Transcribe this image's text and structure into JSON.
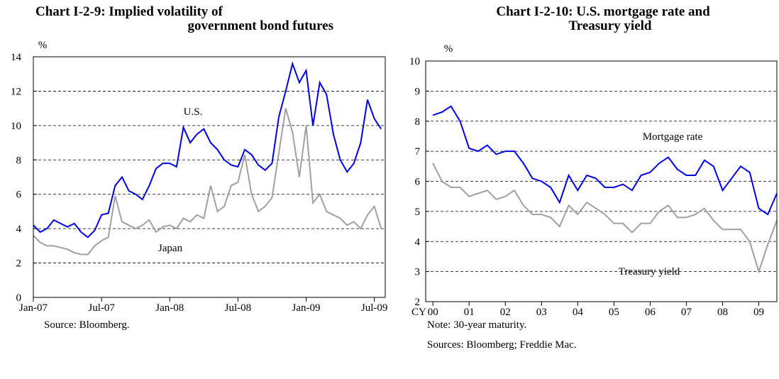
{
  "chart_data": [
    {
      "type": "line",
      "title_lines": [
        "Chart I-2-9: Implied volatility of",
        "government bond futures"
      ],
      "y_label": "%",
      "annotations": [
        "U.S.",
        "Japan"
      ],
      "notes": [
        "Source: Bloomberg."
      ],
      "xlim": [
        2007.0,
        2009.58
      ],
      "xticks": [
        {
          "value": 2007.0,
          "label": "Jan-07"
        },
        {
          "value": 2007.5,
          "label": "Jul-07"
        },
        {
          "value": 2008.0,
          "label": "Jan-08"
        },
        {
          "value": 2008.5,
          "label": "Jul-08"
        },
        {
          "value": 2009.0,
          "label": "Jan-09"
        },
        {
          "value": 2009.5,
          "label": "Jul-09"
        }
      ],
      "ylim": [
        0,
        14
      ],
      "yticks": [
        0,
        2,
        4,
        6,
        8,
        10,
        12,
        14
      ],
      "grid": true,
      "x": [
        2007.0,
        2007.05,
        2007.1,
        2007.15,
        2007.2,
        2007.25,
        2007.3,
        2007.35,
        2007.4,
        2007.45,
        2007.5,
        2007.55,
        2007.6,
        2007.65,
        2007.7,
        2007.75,
        2007.8,
        2007.85,
        2007.9,
        2007.95,
        2008.0,
        2008.05,
        2008.1,
        2008.15,
        2008.2,
        2008.25,
        2008.3,
        2008.35,
        2008.4,
        2008.45,
        2008.5,
        2008.55,
        2008.6,
        2008.65,
        2008.7,
        2008.75,
        2008.8,
        2008.85,
        2008.9,
        2008.95,
        2009.0,
        2009.05,
        2009.1,
        2009.15,
        2009.2,
        2009.25,
        2009.3,
        2009.35,
        2009.4,
        2009.45,
        2009.5,
        2009.55
      ],
      "series": [
        {
          "name": "U.S.",
          "color": "#0000e6",
          "values": [
            4.2,
            3.8,
            4.0,
            4.5,
            4.3,
            4.1,
            4.3,
            3.8,
            3.5,
            3.9,
            4.8,
            4.9,
            6.5,
            7.0,
            6.2,
            6.0,
            5.7,
            6.5,
            7.5,
            7.8,
            7.8,
            7.6,
            9.9,
            9.0,
            9.5,
            9.8,
            9.0,
            8.6,
            8.0,
            7.7,
            7.6,
            8.6,
            8.3,
            7.7,
            7.4,
            7.8,
            10.5,
            12.0,
            13.6,
            12.5,
            13.2,
            10.0,
            12.5,
            11.8,
            9.5,
            8.0,
            7.3,
            7.8,
            9.0,
            11.5,
            10.4,
            9.8
          ]
        },
        {
          "name": "Japan",
          "color": "#a0a0a0",
          "values": [
            3.6,
            3.2,
            3.0,
            3.0,
            2.9,
            2.8,
            2.6,
            2.5,
            2.5,
            3.0,
            3.3,
            3.5,
            5.9,
            4.4,
            4.2,
            4.0,
            4.2,
            4.5,
            3.8,
            4.1,
            4.2,
            4.0,
            4.6,
            4.4,
            4.8,
            4.6,
            6.5,
            5.0,
            5.3,
            6.5,
            6.7,
            8.3,
            6.0,
            5.0,
            5.3,
            5.8,
            8.4,
            11.0,
            9.6,
            7.0,
            10.0,
            5.5,
            6.0,
            5.0,
            4.8,
            4.6,
            4.2,
            4.4,
            4.0,
            4.8,
            5.3,
            4.0
          ]
        }
      ]
    },
    {
      "type": "line",
      "title_lines": [
        "Chart I-2-10: U.S. mortgage rate and",
        "Treasury yield"
      ],
      "y_label": "%",
      "x_label": "CY",
      "annotations": [
        "Mortgage rate",
        "Treasury yield"
      ],
      "notes": [
        "Note: 30-year maturity.",
        "Sources: Bloomberg; Freddie Mac."
      ],
      "xlim": [
        1999.8,
        2009.5
      ],
      "xticks": [
        {
          "value": 2000,
          "label": "00"
        },
        {
          "value": 2001,
          "label": "01"
        },
        {
          "value": 2002,
          "label": "02"
        },
        {
          "value": 2003,
          "label": "03"
        },
        {
          "value": 2004,
          "label": "04"
        },
        {
          "value": 2005,
          "label": "05"
        },
        {
          "value": 2006,
          "label": "06"
        },
        {
          "value": 2007,
          "label": "07"
        },
        {
          "value": 2008,
          "label": "08"
        },
        {
          "value": 2009,
          "label": "09"
        }
      ],
      "ylim": [
        2,
        10
      ],
      "yticks": [
        2,
        3,
        4,
        5,
        6,
        7,
        8,
        9,
        10
      ],
      "grid": true,
      "x": [
        2000.0,
        2000.25,
        2000.5,
        2000.75,
        2001.0,
        2001.25,
        2001.5,
        2001.75,
        2002.0,
        2002.25,
        2002.5,
        2002.75,
        2003.0,
        2003.25,
        2003.5,
        2003.75,
        2004.0,
        2004.25,
        2004.5,
        2004.75,
        2005.0,
        2005.25,
        2005.5,
        2005.75,
        2006.0,
        2006.25,
        2006.5,
        2006.75,
        2007.0,
        2007.25,
        2007.5,
        2007.75,
        2008.0,
        2008.25,
        2008.5,
        2008.75,
        2009.0,
        2009.25,
        2009.5
      ],
      "series": [
        {
          "name": "Mortgage rate",
          "color": "#0000e6",
          "values": [
            8.2,
            8.3,
            8.5,
            8.0,
            7.1,
            7.0,
            7.2,
            6.9,
            7.0,
            7.0,
            6.6,
            6.1,
            6.0,
            5.8,
            5.3,
            6.2,
            5.7,
            6.2,
            6.1,
            5.8,
            5.8,
            5.9,
            5.7,
            6.2,
            6.3,
            6.6,
            6.8,
            6.4,
            6.2,
            6.2,
            6.7,
            6.5,
            5.7,
            6.1,
            6.5,
            6.3,
            5.1,
            4.9,
            5.6
          ]
        },
        {
          "name": "Treasury yield",
          "color": "#a0a0a0",
          "values": [
            6.6,
            6.0,
            5.8,
            5.8,
            5.5,
            5.6,
            5.7,
            5.4,
            5.5,
            5.7,
            5.2,
            4.9,
            4.9,
            4.8,
            4.5,
            5.2,
            4.9,
            5.3,
            5.1,
            4.9,
            4.6,
            4.6,
            4.3,
            4.6,
            4.6,
            5.0,
            5.2,
            4.8,
            4.8,
            4.9,
            5.1,
            4.7,
            4.4,
            4.4,
            4.4,
            4.0,
            3.0,
            3.9,
            4.7
          ]
        }
      ]
    }
  ]
}
